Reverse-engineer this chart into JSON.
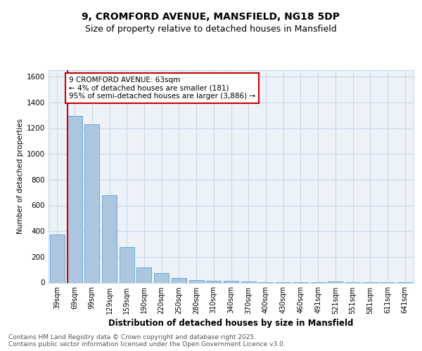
{
  "title_line1": "9, CROMFORD AVENUE, MANSFIELD, NG18 5DP",
  "title_line2": "Size of property relative to detached houses in Mansfield",
  "xlabel": "Distribution of detached houses by size in Mansfield",
  "ylabel": "Number of detached properties",
  "categories": [
    "39sqm",
    "69sqm",
    "99sqm",
    "129sqm",
    "159sqm",
    "190sqm",
    "220sqm",
    "250sqm",
    "280sqm",
    "310sqm",
    "340sqm",
    "370sqm",
    "400sqm",
    "430sqm",
    "460sqm",
    "491sqm",
    "521sqm",
    "551sqm",
    "581sqm",
    "611sqm",
    "641sqm"
  ],
  "values": [
    375,
    1295,
    1230,
    680,
    275,
    120,
    75,
    38,
    20,
    12,
    15,
    10,
    5,
    3,
    2,
    3,
    8,
    1,
    1,
    1,
    1
  ],
  "bar_color": "#adc6e0",
  "bar_edge_color": "#6aaad4",
  "grid_color": "#c5d8ea",
  "background_color": "#edf2f8",
  "annotation_text": "9 CROMFORD AVENUE: 63sqm\n← 4% of detached houses are smaller (181)\n95% of semi-detached houses are larger (3,886) →",
  "vline_color": "#cc0000",
  "annotation_box_color": "#cc0000",
  "ylim": [
    0,
    1650
  ],
  "yticks": [
    0,
    200,
    400,
    600,
    800,
    1000,
    1200,
    1400,
    1600
  ],
  "footer_text": "Contains HM Land Registry data © Crown copyright and database right 2025.\nContains public sector information licensed under the Open Government Licence v3.0.",
  "title_fontsize": 10,
  "subtitle_fontsize": 9
}
